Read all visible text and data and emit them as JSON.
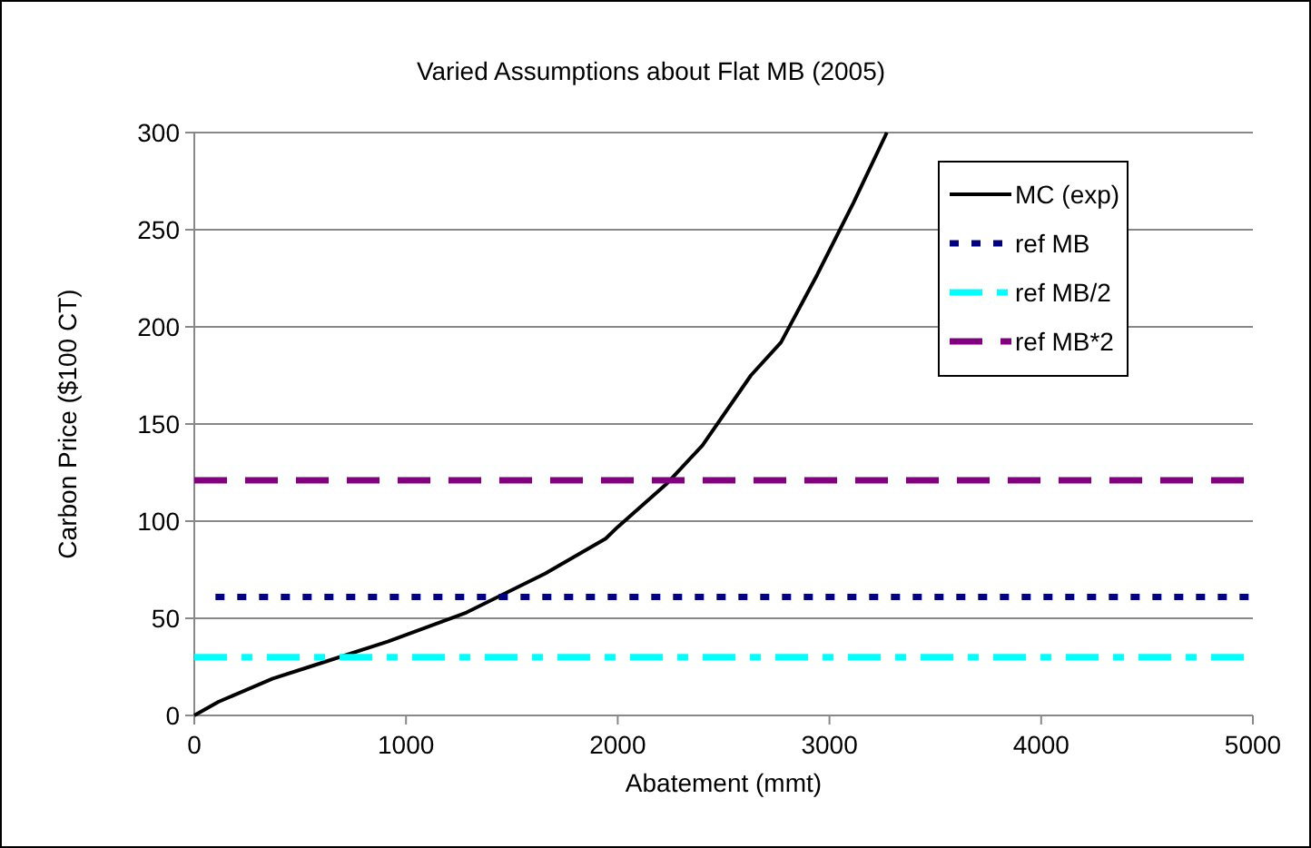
{
  "chart_data": {
    "type": "line",
    "title": "Varied Assumptions about Flat MB (2005)",
    "xlabel": "Abatement (mmt)",
    "ylabel": "Carbon Price ($100 CT)",
    "xlim": [
      0,
      5000
    ],
    "xticks": [
      0,
      1000,
      2000,
      3000,
      4000,
      5000
    ],
    "ylim": [
      0,
      300
    ],
    "yticks": [
      0,
      50,
      100,
      150,
      200,
      250,
      300
    ],
    "grid": "y",
    "legend": "top right",
    "marker": "none",
    "series": [
      {
        "name": "MC (exp)",
        "color": "#000000",
        "line_style": "solid",
        "x": [
          0,
          114,
          371,
          543,
          914,
          1286,
          1657,
          1943,
          2000,
          2229,
          2400,
          2629,
          2771,
          2943,
          3114,
          3271
        ],
        "values": [
          0,
          7,
          19,
          25,
          38,
          53,
          73,
          91,
          97,
          119,
          139,
          175,
          192,
          227,
          264,
          300
        ]
      },
      {
        "name": "ref MB",
        "color": "#000080",
        "line_style": "dotted",
        "x": [
          100,
          5000
        ],
        "values": [
          61,
          61
        ]
      },
      {
        "name": "ref MB/2",
        "color": "#00ffff",
        "line_style": "dashdot",
        "x": [
          0,
          5000
        ],
        "values": [
          30,
          30
        ]
      },
      {
        "name": "ref MB*2",
        "color": "#800080",
        "line_style": "dashed",
        "x": [
          0,
          5000
        ],
        "values": [
          121,
          121
        ]
      }
    ]
  }
}
